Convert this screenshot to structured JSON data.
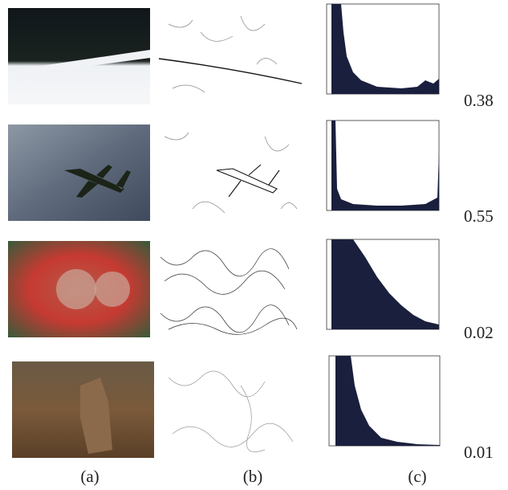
{
  "figure": {
    "rows": [
      {
        "score": "0.38"
      },
      {
        "score": "0.55"
      },
      {
        "score": "0.02"
      },
      {
        "score": "0.01"
      }
    ],
    "captions": [
      "(a)",
      "(b)",
      "(c)"
    ]
  }
}
